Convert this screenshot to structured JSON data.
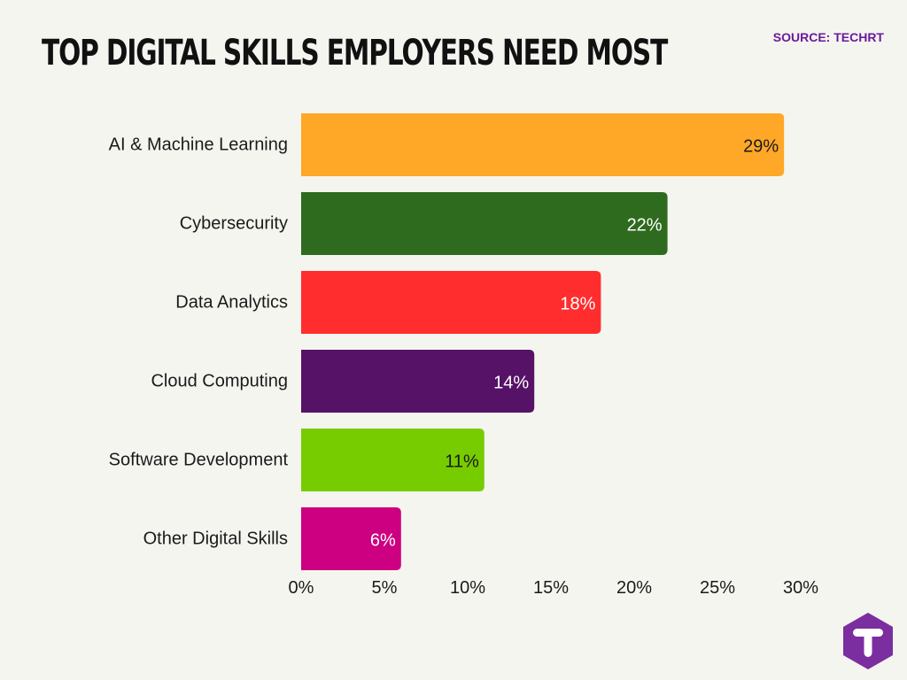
{
  "header": {
    "title": "TOP DIGITAL SKILLS EMPLOYERS NEED MOST",
    "source": "SOURCE: TECHRT"
  },
  "colors": {
    "background": "#f5f5f0",
    "source_text": "#6a1b9a",
    "logo": "#7b2ea0"
  },
  "logo": {
    "icon": "techrt-logo-icon",
    "letter": "T"
  },
  "chart_data": {
    "type": "bar",
    "orientation": "horizontal",
    "title": "TOP DIGITAL SKILLS EMPLOYERS NEED MOST",
    "categories": [
      "AI & Machine Learning",
      "Cybersecurity",
      "Data Analytics",
      "Cloud Computing",
      "Software Development",
      "Other Digital Skills"
    ],
    "values": [
      29,
      22,
      18,
      14,
      11,
      6
    ],
    "value_labels": [
      "29%",
      "22%",
      "18%",
      "14%",
      "11%",
      "6%"
    ],
    "bar_colors": [
      "#ffa726",
      "#2e6b1f",
      "#ff2d2d",
      "#561267",
      "#77cc00",
      "#cc0080"
    ],
    "label_colors": [
      "#1a1a1a",
      "#ffffff",
      "#ffffff",
      "#ffffff",
      "#1a1a1a",
      "#ffffff"
    ],
    "xlim": [
      0,
      30
    ],
    "x_ticks": [
      0,
      5,
      10,
      15,
      20,
      25,
      30
    ],
    "x_tick_labels": [
      "0%",
      "5%",
      "10%",
      "15%",
      "20%",
      "25%",
      "30%"
    ],
    "xlabel": "",
    "ylabel": "",
    "grid": false,
    "legend": "none"
  }
}
